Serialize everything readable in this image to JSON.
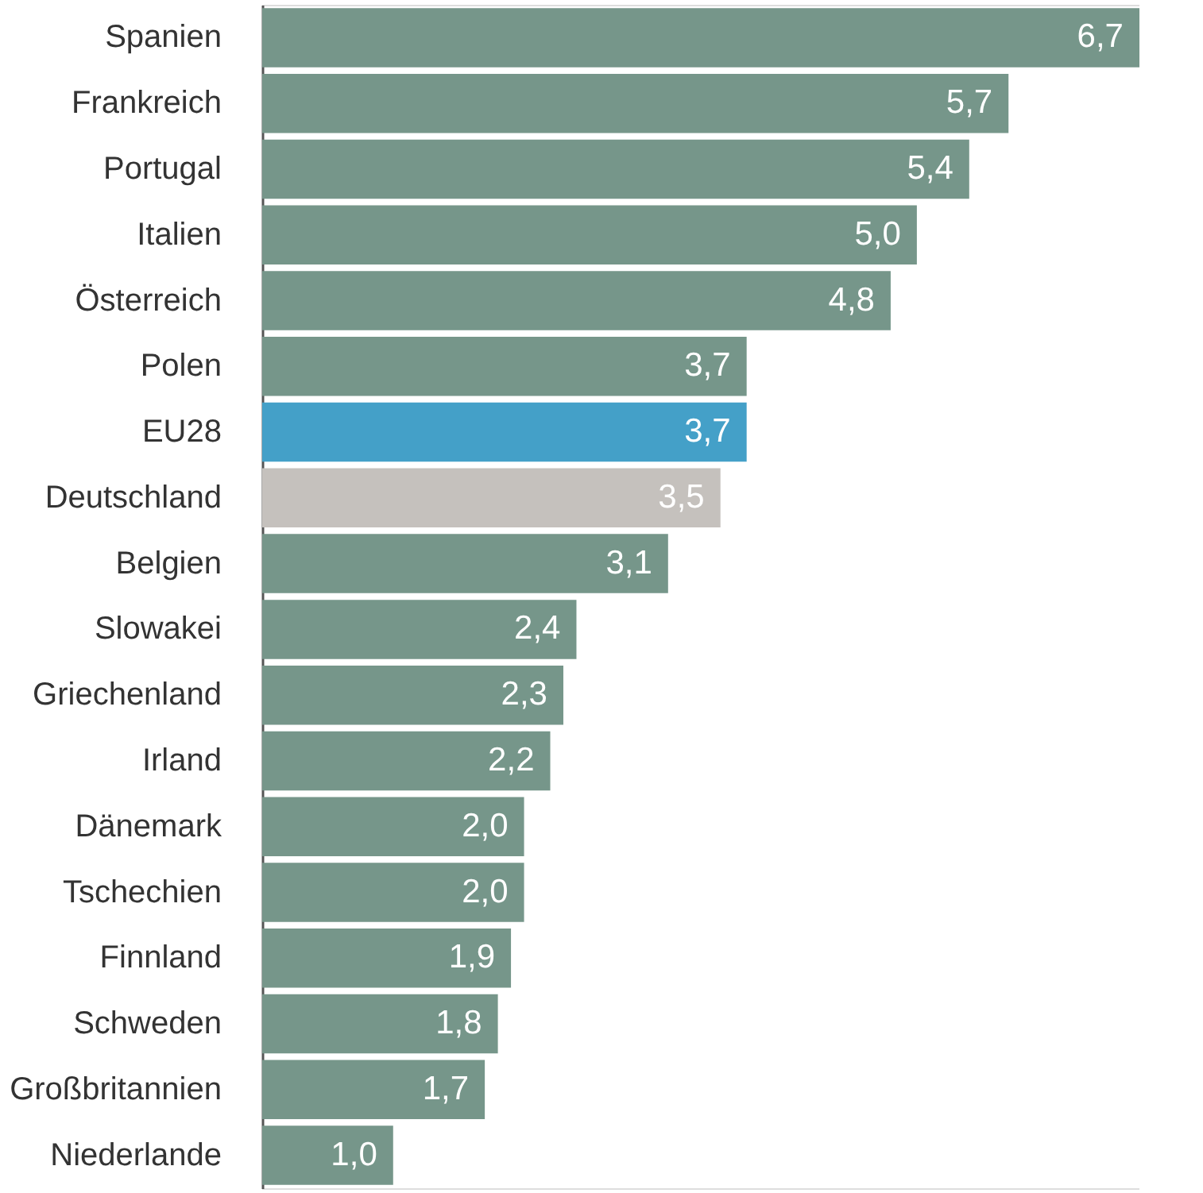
{
  "chart_data": {
    "type": "bar",
    "orientation": "horizontal",
    "categories": [
      "Spanien",
      "Frankreich",
      "Portugal",
      "Italien",
      "Österreich",
      "Polen",
      "EU28",
      "Deutschland",
      "Belgien",
      "Slowakei",
      "Griechenland",
      "Irland",
      "Dänemark",
      "Tschechien",
      "Finnland",
      "Schweden",
      "Großbritannien",
      "Niederlande"
    ],
    "values": [
      6.7,
      5.7,
      5.4,
      5.0,
      4.8,
      3.7,
      3.7,
      3.5,
      3.1,
      2.4,
      2.3,
      2.2,
      2.0,
      2.0,
      1.9,
      1.8,
      1.7,
      1.0
    ],
    "value_labels": [
      "6,7",
      "5,7",
      "5,4",
      "5,0",
      "4,8",
      "3,7",
      "3,7",
      "3,5",
      "3,1",
      "2,4",
      "2,3",
      "2,2",
      "2,0",
      "2,0",
      "1,9",
      "1,8",
      "1,7",
      "1,0"
    ],
    "colors": [
      "#76968a",
      "#76968a",
      "#76968a",
      "#76968a",
      "#76968a",
      "#76968a",
      "#44a0c8",
      "#c5c1bd",
      "#76968a",
      "#76968a",
      "#76968a",
      "#76968a",
      "#76968a",
      "#76968a",
      "#76968a",
      "#76968a",
      "#76968a",
      "#76968a"
    ],
    "grid": false,
    "legend": false
  }
}
